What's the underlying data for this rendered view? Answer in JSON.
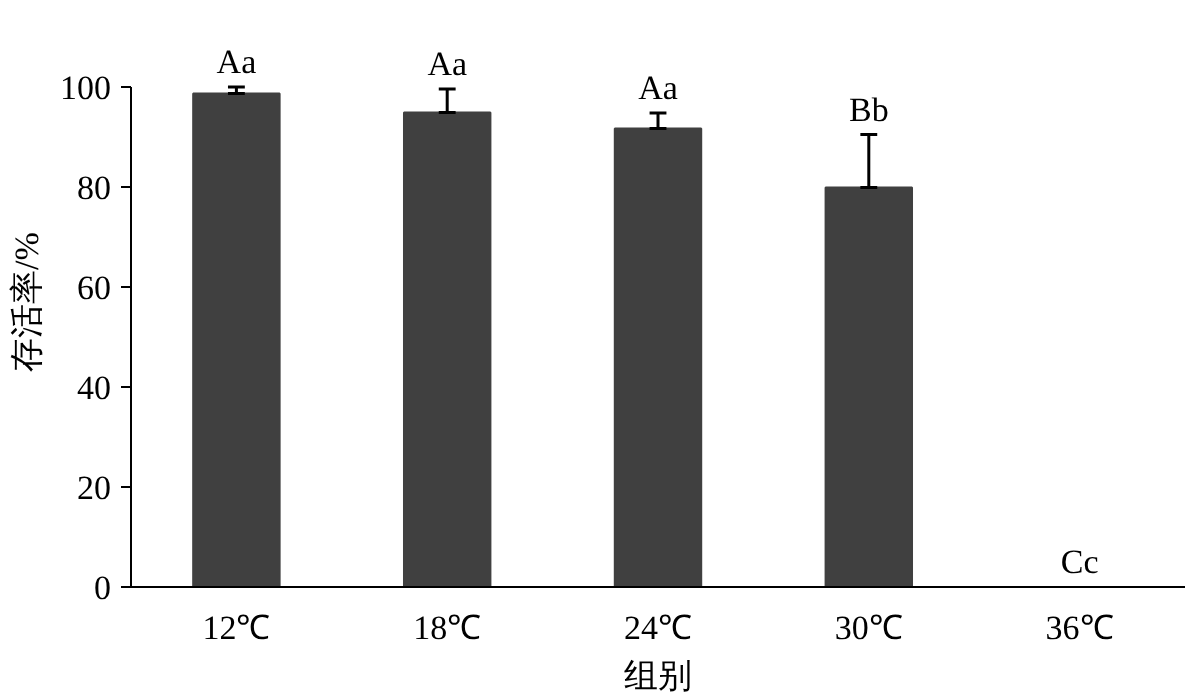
{
  "chart_data": {
    "type": "bar",
    "xlabel": "组别",
    "ylabel": "存活率/%",
    "categories": [
      "12℃",
      "18℃",
      "24℃",
      "30℃",
      "36℃"
    ],
    "values": [
      98.7,
      94.9,
      91.7,
      79.9,
      0
    ],
    "errors": [
      [
        98.7,
        100
      ],
      [
        94.9,
        99.6
      ],
      [
        91.7,
        94.8
      ],
      [
        79.9,
        90.5
      ],
      null
    ],
    "color": "#404040",
    "ylim": [
      0,
      100
    ],
    "yticks": [
      0,
      20,
      40,
      60,
      80,
      100
    ],
    "grid": false,
    "annotations": [
      {
        "text": "Aa",
        "x": "12℃",
        "y": 100
      },
      {
        "text": "Aa",
        "x": "18℃",
        "y": 99.6
      },
      {
        "text": "Aa",
        "x": "24℃",
        "y": 94.8
      },
      {
        "text": "Bb",
        "x": "30℃",
        "y": 90.5
      },
      {
        "text": "Cc",
        "x": "36℃",
        "y": 0
      }
    ]
  }
}
